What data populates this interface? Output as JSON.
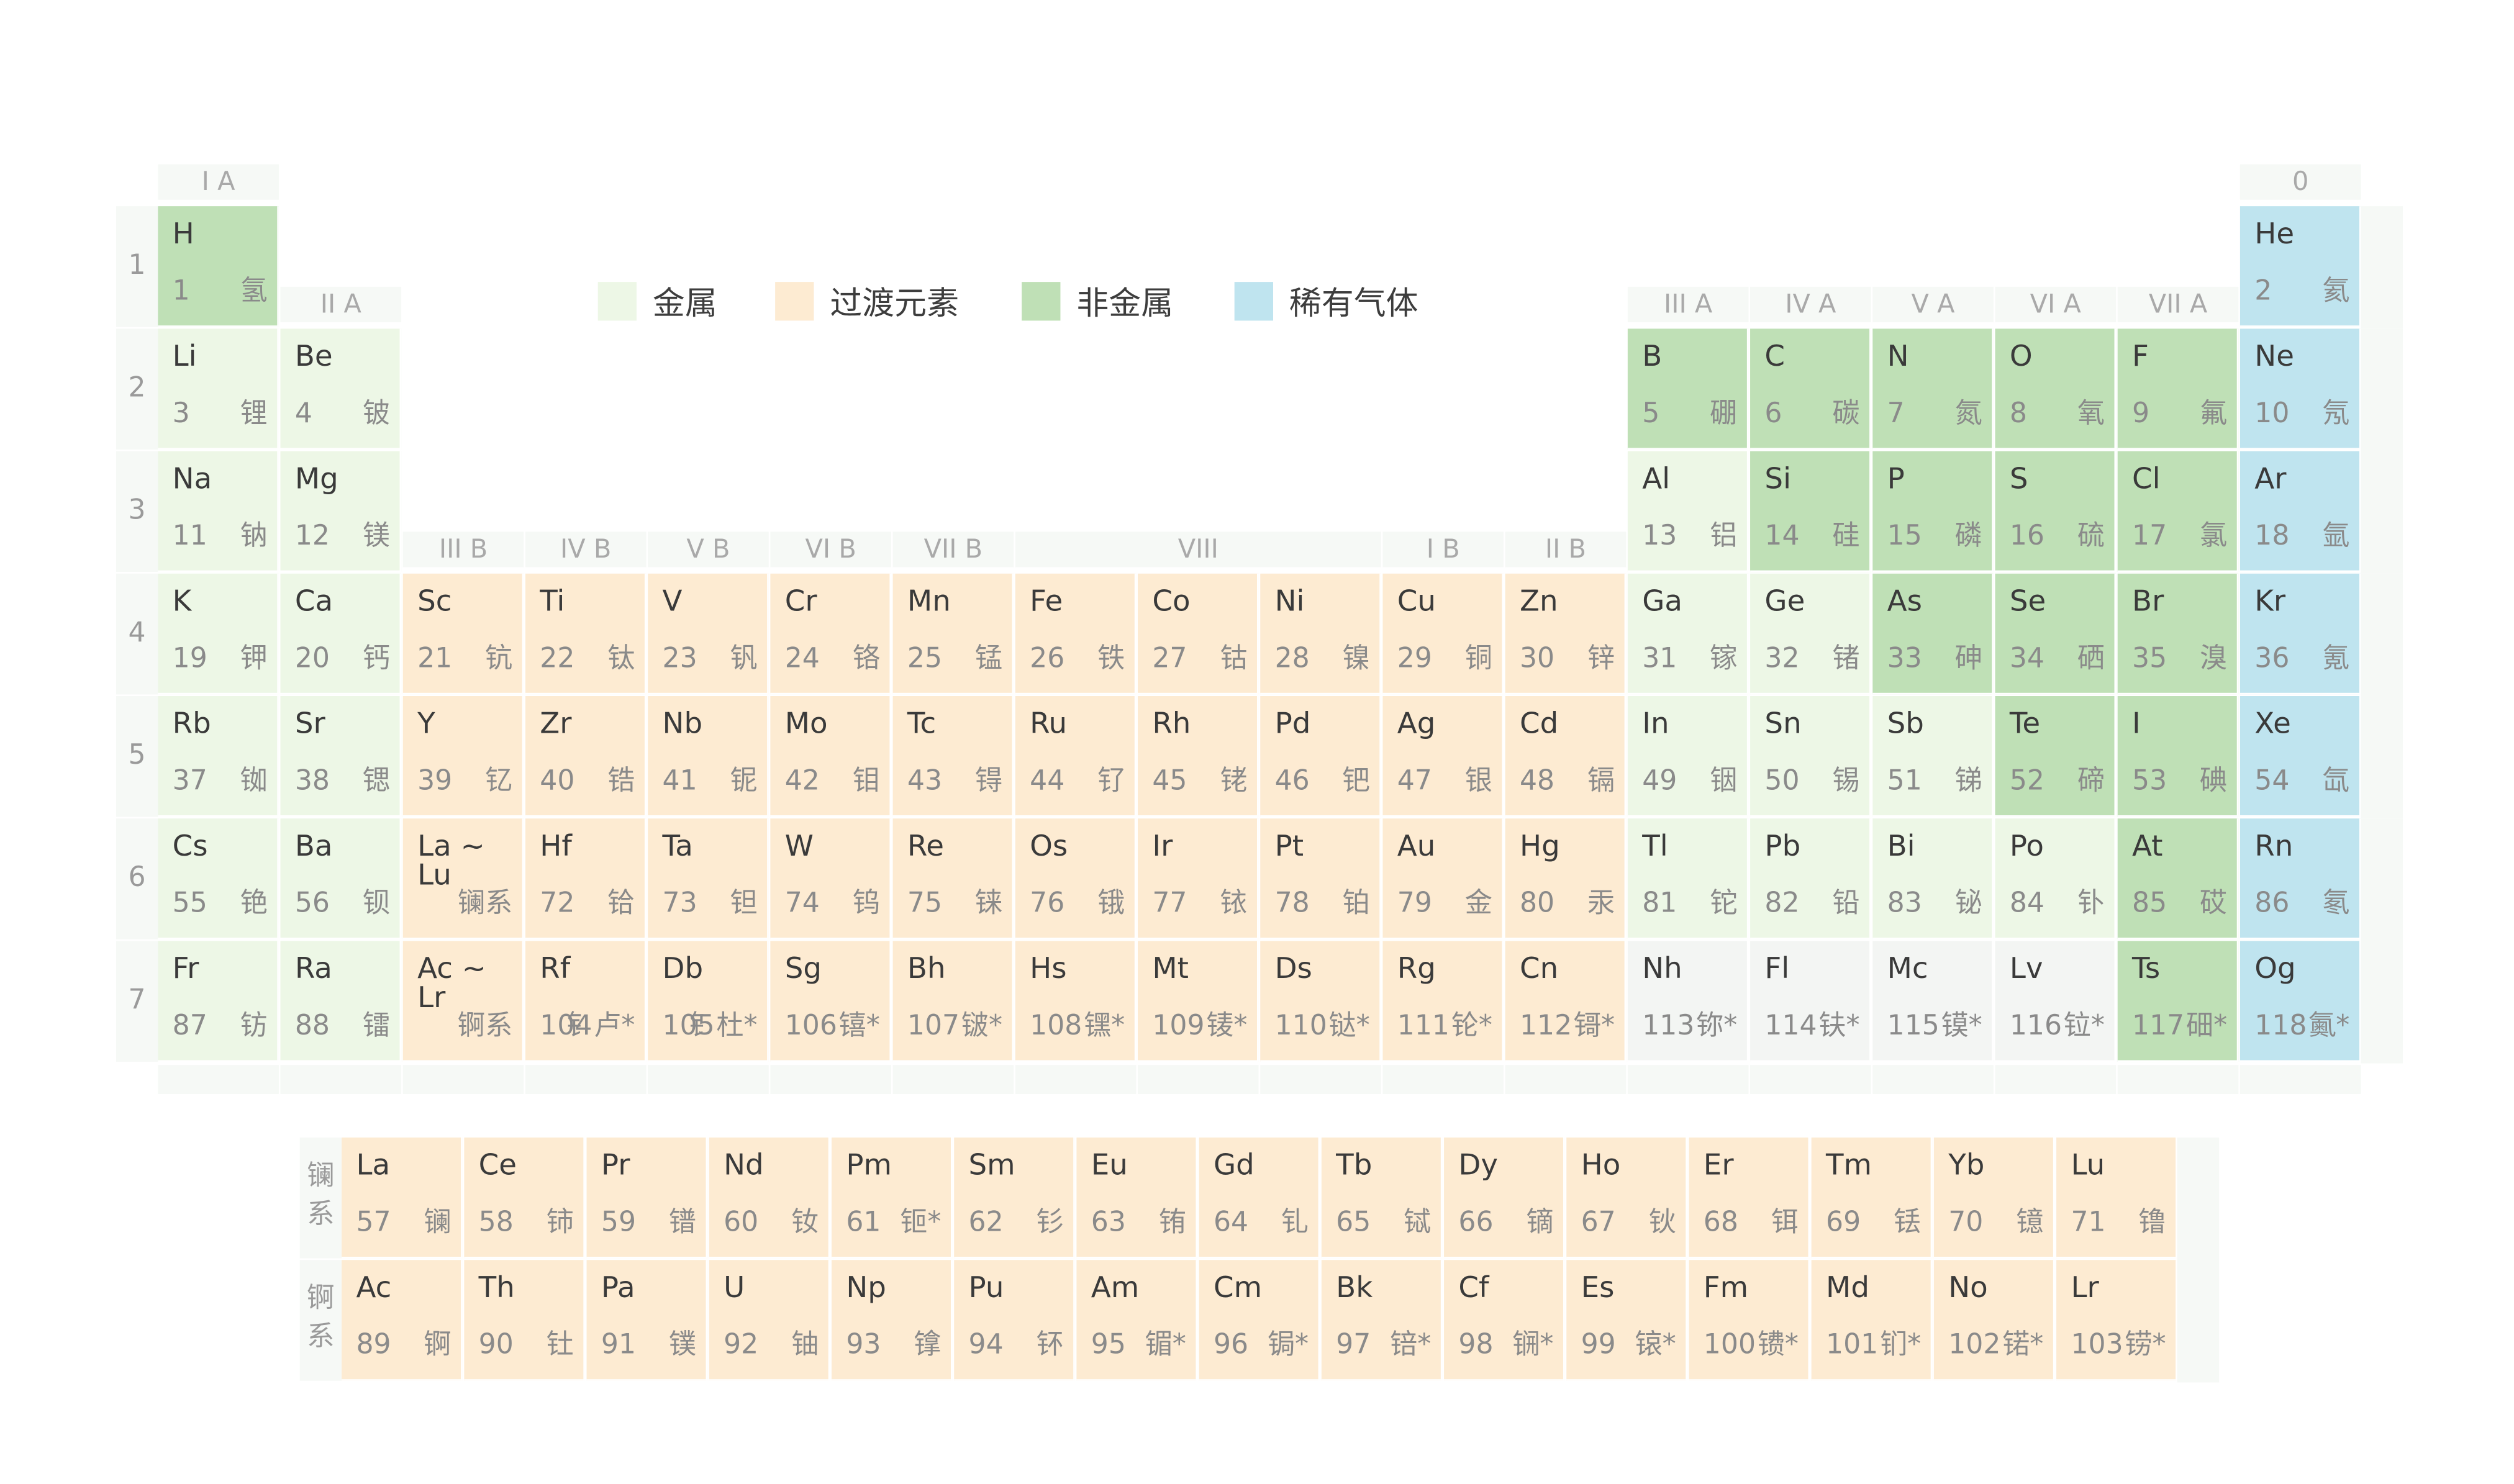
{
  "legend": [
    {
      "label": "金属",
      "color": "#edf7e6"
    },
    {
      "label": "过渡元素",
      "color": "#fdebd2"
    },
    {
      "label": "非金属",
      "color": "#bfe0b6"
    },
    {
      "label": "稀有气体",
      "color": "#bfe4ef"
    }
  ],
  "group_labels": {
    "g1": "I A",
    "g2": "II A",
    "g3": "III B",
    "g4": "IV B",
    "g5": "V B",
    "g6": "VI B",
    "g7": "VII B",
    "g8": "VIII",
    "g11": "I B",
    "g12": "II B",
    "g13": "III A",
    "g14": "IV A",
    "g15": "V A",
    "g16": "VI A",
    "g17": "VII A",
    "g18": "0"
  },
  "periods": [
    "1",
    "2",
    "3",
    "4",
    "5",
    "6",
    "7"
  ],
  "series_labels": {
    "lanthanides": "镧\n系",
    "actinides": "锕\n系"
  },
  "main_table": [
    {
      "sym": "H",
      "num": "1",
      "cn": "氢",
      "cat": "nonmetal",
      "col": 1,
      "row": 1
    },
    {
      "sym": "He",
      "num": "2",
      "cn": "氦",
      "cat": "noble",
      "col": 18,
      "row": 1
    },
    {
      "sym": "Li",
      "num": "3",
      "cn": "锂",
      "cat": "metal",
      "col": 1,
      "row": 2
    },
    {
      "sym": "Be",
      "num": "4",
      "cn": "铍",
      "cat": "metal",
      "col": 2,
      "row": 2
    },
    {
      "sym": "B",
      "num": "5",
      "cn": "硼",
      "cat": "nonmetal",
      "col": 13,
      "row": 2
    },
    {
      "sym": "C",
      "num": "6",
      "cn": "碳",
      "cat": "nonmetal",
      "col": 14,
      "row": 2
    },
    {
      "sym": "N",
      "num": "7",
      "cn": "氮",
      "cat": "nonmetal",
      "col": 15,
      "row": 2
    },
    {
      "sym": "O",
      "num": "8",
      "cn": "氧",
      "cat": "nonmetal",
      "col": 16,
      "row": 2
    },
    {
      "sym": "F",
      "num": "9",
      "cn": "氟",
      "cat": "nonmetal",
      "col": 17,
      "row": 2
    },
    {
      "sym": "Ne",
      "num": "10",
      "cn": "氖",
      "cat": "noble",
      "col": 18,
      "row": 2
    },
    {
      "sym": "Na",
      "num": "11",
      "cn": "钠",
      "cat": "metal",
      "col": 1,
      "row": 3
    },
    {
      "sym": "Mg",
      "num": "12",
      "cn": "镁",
      "cat": "metal",
      "col": 2,
      "row": 3
    },
    {
      "sym": "Al",
      "num": "13",
      "cn": "铝",
      "cat": "metal",
      "col": 13,
      "row": 3
    },
    {
      "sym": "Si",
      "num": "14",
      "cn": "硅",
      "cat": "nonmetal",
      "col": 14,
      "row": 3
    },
    {
      "sym": "P",
      "num": "15",
      "cn": "磷",
      "cat": "nonmetal",
      "col": 15,
      "row": 3
    },
    {
      "sym": "S",
      "num": "16",
      "cn": "硫",
      "cat": "nonmetal",
      "col": 16,
      "row": 3
    },
    {
      "sym": "Cl",
      "num": "17",
      "cn": "氯",
      "cat": "nonmetal",
      "col": 17,
      "row": 3
    },
    {
      "sym": "Ar",
      "num": "18",
      "cn": "氩",
      "cat": "noble",
      "col": 18,
      "row": 3
    },
    {
      "sym": "K",
      "num": "19",
      "cn": "钾",
      "cat": "metal",
      "col": 1,
      "row": 4
    },
    {
      "sym": "Ca",
      "num": "20",
      "cn": "钙",
      "cat": "metal",
      "col": 2,
      "row": 4
    },
    {
      "sym": "Sc",
      "num": "21",
      "cn": "钪",
      "cat": "trans",
      "col": 3,
      "row": 4
    },
    {
      "sym": "Ti",
      "num": "22",
      "cn": "钛",
      "cat": "trans",
      "col": 4,
      "row": 4
    },
    {
      "sym": "V",
      "num": "23",
      "cn": "钒",
      "cat": "trans",
      "col": 5,
      "row": 4
    },
    {
      "sym": "Cr",
      "num": "24",
      "cn": "铬",
      "cat": "trans",
      "col": 6,
      "row": 4
    },
    {
      "sym": "Mn",
      "num": "25",
      "cn": "锰",
      "cat": "trans",
      "col": 7,
      "row": 4
    },
    {
      "sym": "Fe",
      "num": "26",
      "cn": "铁",
      "cat": "trans",
      "col": 8,
      "row": 4
    },
    {
      "sym": "Co",
      "num": "27",
      "cn": "钴",
      "cat": "trans",
      "col": 9,
      "row": 4
    },
    {
      "sym": "Ni",
      "num": "28",
      "cn": "镍",
      "cat": "trans",
      "col": 10,
      "row": 4
    },
    {
      "sym": "Cu",
      "num": "29",
      "cn": "铜",
      "cat": "trans",
      "col": 11,
      "row": 4
    },
    {
      "sym": "Zn",
      "num": "30",
      "cn": "锌",
      "cat": "trans",
      "col": 12,
      "row": 4
    },
    {
      "sym": "Ga",
      "num": "31",
      "cn": "镓",
      "cat": "metal",
      "col": 13,
      "row": 4
    },
    {
      "sym": "Ge",
      "num": "32",
      "cn": "锗",
      "cat": "metal",
      "col": 14,
      "row": 4
    },
    {
      "sym": "As",
      "num": "33",
      "cn": "砷",
      "cat": "nonmetal",
      "col": 15,
      "row": 4
    },
    {
      "sym": "Se",
      "num": "34",
      "cn": "硒",
      "cat": "nonmetal",
      "col": 16,
      "row": 4
    },
    {
      "sym": "Br",
      "num": "35",
      "cn": "溴",
      "cat": "nonmetal",
      "col": 17,
      "row": 4
    },
    {
      "sym": "Kr",
      "num": "36",
      "cn": "氪",
      "cat": "noble",
      "col": 18,
      "row": 4
    },
    {
      "sym": "Rb",
      "num": "37",
      "cn": "铷",
      "cat": "metal",
      "col": 1,
      "row": 5
    },
    {
      "sym": "Sr",
      "num": "38",
      "cn": "锶",
      "cat": "metal",
      "col": 2,
      "row": 5
    },
    {
      "sym": "Y",
      "num": "39",
      "cn": "钇",
      "cat": "trans",
      "col": 3,
      "row": 5
    },
    {
      "sym": "Zr",
      "num": "40",
      "cn": "锆",
      "cat": "trans",
      "col": 4,
      "row": 5
    },
    {
      "sym": "Nb",
      "num": "41",
      "cn": "铌",
      "cat": "trans",
      "col": 5,
      "row": 5
    },
    {
      "sym": "Mo",
      "num": "42",
      "cn": "钼",
      "cat": "trans",
      "col": 6,
      "row": 5
    },
    {
      "sym": "Tc",
      "num": "43",
      "cn": "锝",
      "cat": "trans",
      "col": 7,
      "row": 5
    },
    {
      "sym": "Ru",
      "num": "44",
      "cn": "钌",
      "cat": "trans",
      "col": 8,
      "row": 5
    },
    {
      "sym": "Rh",
      "num": "45",
      "cn": "铑",
      "cat": "trans",
      "col": 9,
      "row": 5
    },
    {
      "sym": "Pd",
      "num": "46",
      "cn": "钯",
      "cat": "trans",
      "col": 10,
      "row": 5
    },
    {
      "sym": "Ag",
      "num": "47",
      "cn": "银",
      "cat": "trans",
      "col": 11,
      "row": 5
    },
    {
      "sym": "Cd",
      "num": "48",
      "cn": "镉",
      "cat": "trans",
      "col": 12,
      "row": 5
    },
    {
      "sym": "In",
      "num": "49",
      "cn": "铟",
      "cat": "metal",
      "col": 13,
      "row": 5
    },
    {
      "sym": "Sn",
      "num": "50",
      "cn": "锡",
      "cat": "metal",
      "col": 14,
      "row": 5
    },
    {
      "sym": "Sb",
      "num": "51",
      "cn": "锑",
      "cat": "metal",
      "col": 15,
      "row": 5
    },
    {
      "sym": "Te",
      "num": "52",
      "cn": "碲",
      "cat": "nonmetal",
      "col": 16,
      "row": 5
    },
    {
      "sym": "I",
      "num": "53",
      "cn": "碘",
      "cat": "nonmetal",
      "col": 17,
      "row": 5
    },
    {
      "sym": "Xe",
      "num": "54",
      "cn": "氙",
      "cat": "noble",
      "col": 18,
      "row": 5
    },
    {
      "sym": "Cs",
      "num": "55",
      "cn": "铯",
      "cat": "metal",
      "col": 1,
      "row": 6
    },
    {
      "sym": "Ba",
      "num": "56",
      "cn": "钡",
      "cat": "metal",
      "col": 2,
      "row": 6
    },
    {
      "sym": "La ~ Lu",
      "num": "",
      "cn": "镧系",
      "cat": "trans",
      "col": 3,
      "row": 6
    },
    {
      "sym": "Hf",
      "num": "72",
      "cn": "铪",
      "cat": "trans",
      "col": 4,
      "row": 6
    },
    {
      "sym": "Ta",
      "num": "73",
      "cn": "钽",
      "cat": "trans",
      "col": 5,
      "row": 6
    },
    {
      "sym": "W",
      "num": "74",
      "cn": "钨",
      "cat": "trans",
      "col": 6,
      "row": 6
    },
    {
      "sym": "Re",
      "num": "75",
      "cn": "铼",
      "cat": "trans",
      "col": 7,
      "row": 6
    },
    {
      "sym": "Os",
      "num": "76",
      "cn": "锇",
      "cat": "trans",
      "col": 8,
      "row": 6
    },
    {
      "sym": "Ir",
      "num": "77",
      "cn": "铱",
      "cat": "trans",
      "col": 9,
      "row": 6
    },
    {
      "sym": "Pt",
      "num": "78",
      "cn": "铂",
      "cat": "trans",
      "col": 10,
      "row": 6
    },
    {
      "sym": "Au",
      "num": "79",
      "cn": "金",
      "cat": "trans",
      "col": 11,
      "row": 6
    },
    {
      "sym": "Hg",
      "num": "80",
      "cn": "汞",
      "cat": "trans",
      "col": 12,
      "row": 6
    },
    {
      "sym": "Tl",
      "num": "81",
      "cn": "铊",
      "cat": "metal",
      "col": 13,
      "row": 6
    },
    {
      "sym": "Pb",
      "num": "82",
      "cn": "铅",
      "cat": "metal",
      "col": 14,
      "row": 6
    },
    {
      "sym": "Bi",
      "num": "83",
      "cn": "铋",
      "cat": "metal",
      "col": 15,
      "row": 6
    },
    {
      "sym": "Po",
      "num": "84",
      "cn": "钋",
      "cat": "metal",
      "col": 16,
      "row": 6
    },
    {
      "sym": "At",
      "num": "85",
      "cn": "砹",
      "cat": "nonmetal",
      "col": 17,
      "row": 6
    },
    {
      "sym": "Rn",
      "num": "86",
      "cn": "氡",
      "cat": "noble",
      "col": 18,
      "row": 6
    },
    {
      "sym": "Fr",
      "num": "87",
      "cn": "钫",
      "cat": "metal",
      "col": 1,
      "row": 7
    },
    {
      "sym": "Ra",
      "num": "88",
      "cn": "镭",
      "cat": "metal",
      "col": 2,
      "row": 7
    },
    {
      "sym": "Ac ~ Lr",
      "num": "",
      "cn": "锕系",
      "cat": "trans",
      "col": 3,
      "row": 7
    },
    {
      "sym": "Rf",
      "num": "104",
      "cn": "钅卢*",
      "cat": "trans",
      "col": 4,
      "row": 7
    },
    {
      "sym": "Db",
      "num": "105",
      "cn": "钅杜*",
      "cat": "trans",
      "col": 5,
      "row": 7
    },
    {
      "sym": "Sg",
      "num": "106",
      "cn": "𬭳*",
      "cat": "trans",
      "col": 6,
      "row": 7
    },
    {
      "sym": "Bh",
      "num": "107",
      "cn": "𬭛*",
      "cat": "trans",
      "col": 7,
      "row": 7
    },
    {
      "sym": "Hs",
      "num": "108",
      "cn": "𬭶*",
      "cat": "trans",
      "col": 8,
      "row": 7
    },
    {
      "sym": "Mt",
      "num": "109",
      "cn": "鿏*",
      "cat": "trans",
      "col": 9,
      "row": 7
    },
    {
      "sym": "Ds",
      "num": "110",
      "cn": "𫟼*",
      "cat": "trans",
      "col": 10,
      "row": 7
    },
    {
      "sym": "Rg",
      "num": "111",
      "cn": "𬬭*",
      "cat": "trans",
      "col": 11,
      "row": 7
    },
    {
      "sym": "Cn",
      "num": "112",
      "cn": "鿔*",
      "cat": "trans",
      "col": 12,
      "row": 7
    },
    {
      "sym": "Nh",
      "num": "113",
      "cn": "鿭*",
      "cat": "unknown",
      "col": 13,
      "row": 7
    },
    {
      "sym": "Fl",
      "num": "114",
      "cn": "𫓧*",
      "cat": "unknown",
      "col": 14,
      "row": 7
    },
    {
      "sym": "Mc",
      "num": "115",
      "cn": "镆*",
      "cat": "unknown",
      "col": 15,
      "row": 7
    },
    {
      "sym": "Lv",
      "num": "116",
      "cn": "𫟷*",
      "cat": "unknown",
      "col": 16,
      "row": 7
    },
    {
      "sym": "Ts",
      "num": "117",
      "cn": "鿬*",
      "cat": "nonmetal",
      "col": 17,
      "row": 7
    },
    {
      "sym": "Og",
      "num": "118",
      "cn": "鿫*",
      "cat": "noble",
      "col": 18,
      "row": 7
    }
  ],
  "lanthanides": [
    {
      "sym": "La",
      "num": "57",
      "cn": "镧"
    },
    {
      "sym": "Ce",
      "num": "58",
      "cn": "铈"
    },
    {
      "sym": "Pr",
      "num": "59",
      "cn": "镨"
    },
    {
      "sym": "Nd",
      "num": "60",
      "cn": "钕"
    },
    {
      "sym": "Pm",
      "num": "61",
      "cn": "钷*"
    },
    {
      "sym": "Sm",
      "num": "62",
      "cn": "钐"
    },
    {
      "sym": "Eu",
      "num": "63",
      "cn": "铕"
    },
    {
      "sym": "Gd",
      "num": "64",
      "cn": "钆"
    },
    {
      "sym": "Tb",
      "num": "65",
      "cn": "铽"
    },
    {
      "sym": "Dy",
      "num": "66",
      "cn": "镝"
    },
    {
      "sym": "Ho",
      "num": "67",
      "cn": "钬"
    },
    {
      "sym": "Er",
      "num": "68",
      "cn": "铒"
    },
    {
      "sym": "Tm",
      "num": "69",
      "cn": "铥"
    },
    {
      "sym": "Yb",
      "num": "70",
      "cn": "镱"
    },
    {
      "sym": "Lu",
      "num": "71",
      "cn": "镥"
    }
  ],
  "actinides": [
    {
      "sym": "Ac",
      "num": "89",
      "cn": "锕"
    },
    {
      "sym": "Th",
      "num": "90",
      "cn": "钍"
    },
    {
      "sym": "Pa",
      "num": "91",
      "cn": "镤"
    },
    {
      "sym": "U",
      "num": "92",
      "cn": "铀"
    },
    {
      "sym": "Np",
      "num": "93",
      "cn": "镎"
    },
    {
      "sym": "Pu",
      "num": "94",
      "cn": "钚"
    },
    {
      "sym": "Am",
      "num": "95",
      "cn": "镅*"
    },
    {
      "sym": "Cm",
      "num": "96",
      "cn": "锔*"
    },
    {
      "sym": "Bk",
      "num": "97",
      "cn": "锫*"
    },
    {
      "sym": "Cf",
      "num": "98",
      "cn": "锎*"
    },
    {
      "sym": "Es",
      "num": "99",
      "cn": "锿*"
    },
    {
      "sym": "Fm",
      "num": "100",
      "cn": "镄*"
    },
    {
      "sym": "Md",
      "num": "101",
      "cn": "钔*"
    },
    {
      "sym": "No",
      "num": "102",
      "cn": "锘*"
    },
    {
      "sym": "Lr",
      "num": "103",
      "cn": "铹*"
    }
  ]
}
